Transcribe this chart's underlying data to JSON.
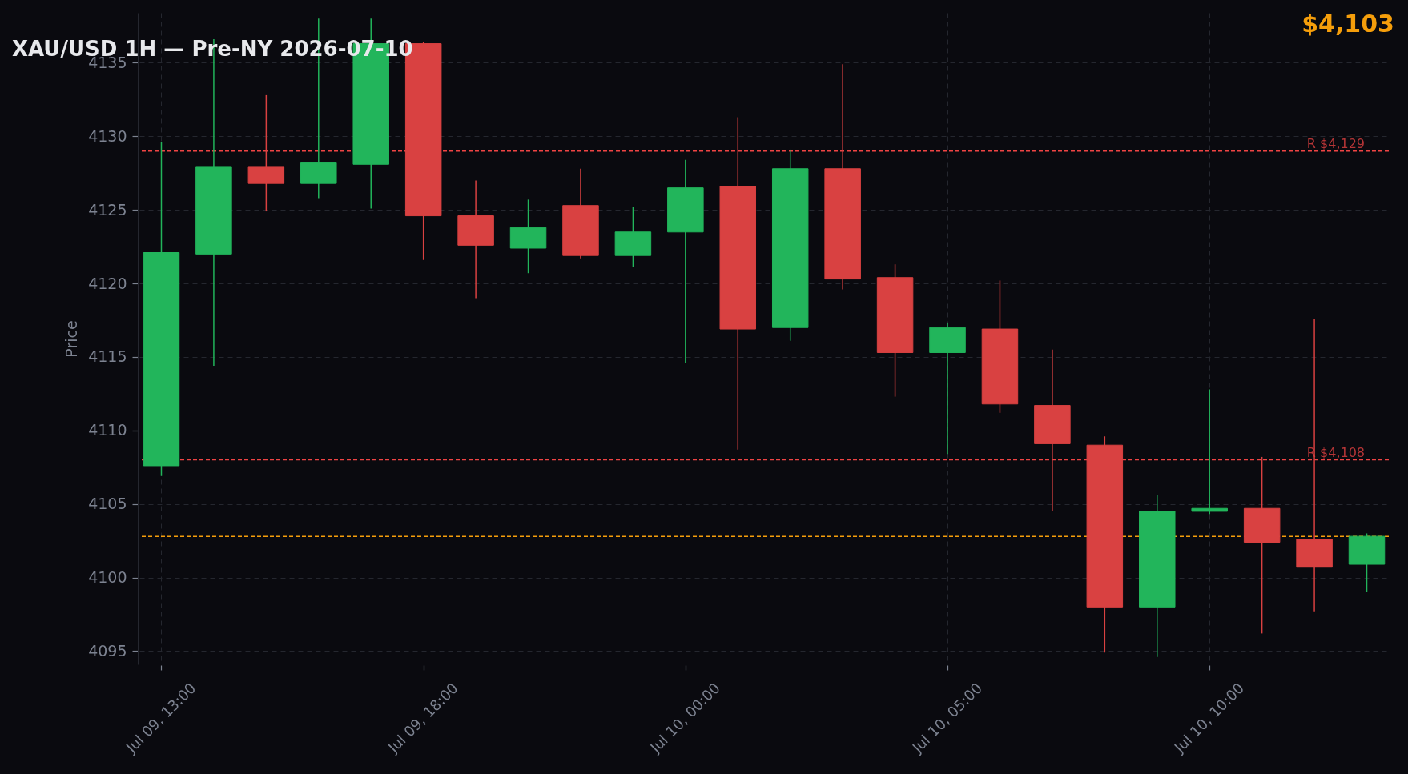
{
  "chart_data": {
    "type": "candlestick",
    "title": "XAU/USD 1H — Pre-NY 2026-07-10",
    "ylabel": "Price",
    "categories": [
      "Jul 09, 13:00",
      null,
      null,
      null,
      null,
      "Jul 09, 18:00",
      null,
      null,
      null,
      null,
      "Jul 10, 00:00",
      null,
      null,
      null,
      null,
      "Jul 10, 05:00",
      null,
      null,
      null,
      null,
      "Jul 10, 10:00",
      null,
      null,
      null
    ],
    "ohlc": [
      [
        4107.6,
        4129.6,
        4106.9,
        4122.1
      ],
      [
        4122.0,
        4136.6,
        4114.4,
        4127.9
      ],
      [
        4127.9,
        4132.8,
        4124.9,
        4126.8
      ],
      [
        4126.8,
        4138.0,
        4125.8,
        4128.2
      ],
      [
        4128.1,
        4138.0,
        4125.1,
        4136.3
      ],
      [
        4136.3,
        4136.4,
        4121.6,
        4124.6
      ],
      [
        4124.6,
        4127.0,
        4119.0,
        4122.6
      ],
      [
        4122.4,
        4125.7,
        4120.7,
        4123.8
      ],
      [
        4125.3,
        4127.8,
        4121.7,
        4121.9
      ],
      [
        4121.9,
        4125.2,
        4121.1,
        4123.5
      ],
      [
        4123.5,
        4128.4,
        4114.6,
        4126.5
      ],
      [
        4126.6,
        4131.3,
        4108.7,
        4116.9
      ],
      [
        4117.0,
        4129.1,
        4116.1,
        4127.8
      ],
      [
        4127.8,
        4134.9,
        4119.6,
        4120.3
      ],
      [
        4120.4,
        4121.3,
        4112.3,
        4115.3
      ],
      [
        4115.3,
        4117.3,
        4108.4,
        4117.0
      ],
      [
        4116.9,
        4120.2,
        4111.2,
        4111.8
      ],
      [
        4111.7,
        4115.5,
        4104.5,
        4109.1
      ],
      [
        4109.0,
        4109.6,
        4094.9,
        4098.0
      ],
      [
        4098.0,
        4105.6,
        4094.6,
        4104.5
      ],
      [
        4104.5,
        4112.8,
        4104.3,
        4104.7
      ],
      [
        4104.7,
        4108.2,
        4096.2,
        4102.4
      ],
      [
        4102.6,
        4117.6,
        4097.7,
        4100.7
      ],
      [
        4100.9,
        4103.0,
        4099.0,
        4102.8
      ]
    ],
    "colors": [
      "#22b55b",
      "#22b55b",
      "#d94141",
      "#22b55b",
      "#22b55b",
      "#d94141",
      "#d94141",
      "#22b55b",
      "#d94141",
      "#22b55b",
      "#22b55b",
      "#d94141",
      "#22b55b",
      "#d94141",
      "#d94141",
      "#22b55b",
      "#d94141",
      "#d94141",
      "#d94141",
      "#22b55b",
      "#22b55b",
      "#d94141",
      "#d94141",
      "#22b55b"
    ],
    "ylim": [
      4094.1,
      4138.4
    ],
    "yticks": [
      4095,
      4100,
      4105,
      4110,
      4115,
      4120,
      4125,
      4130,
      4135
    ],
    "grid": true,
    "ref_lines": [
      {
        "axis": "y",
        "value": 4129,
        "label": "R $4,129",
        "color": "#ef4444",
        "line_style": "dashed"
      },
      {
        "axis": "y",
        "value": 4108,
        "label": "R $4,108",
        "color": "#ef4444",
        "line_style": "dashed"
      },
      {
        "axis": "y",
        "value": 4102.8,
        "color": "#f59e0b",
        "line_style": "dashed"
      }
    ],
    "annotations": [
      "$4,103"
    ]
  }
}
